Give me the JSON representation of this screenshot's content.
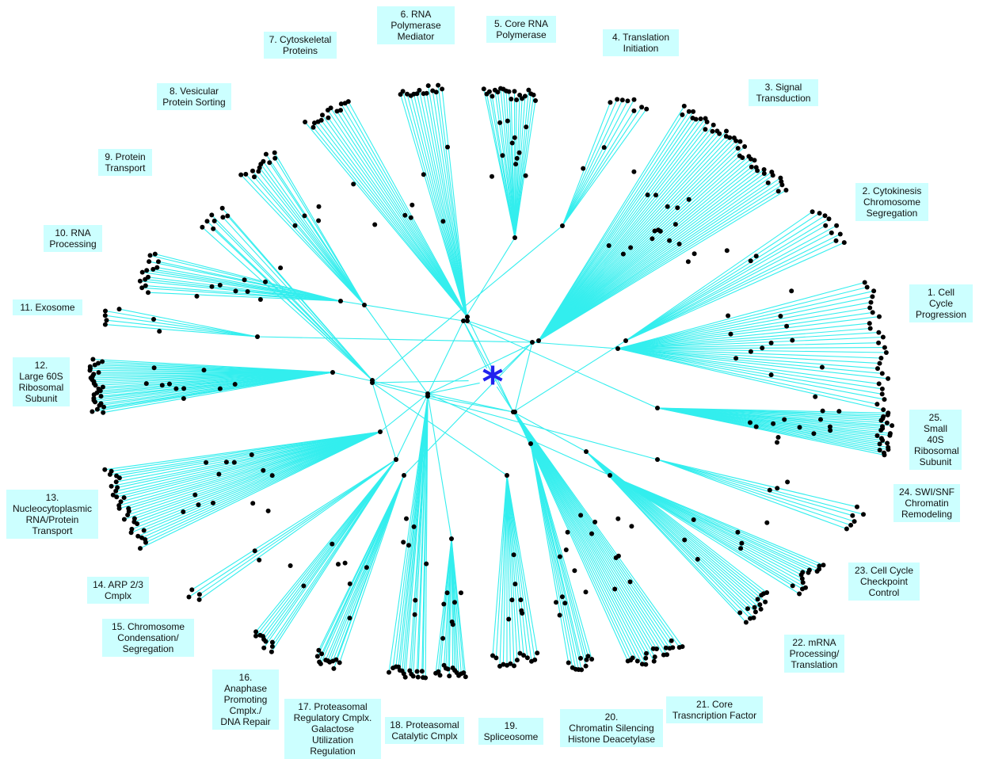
{
  "figure": {
    "center_marker": "*",
    "colors": {
      "edge": "#33eeee",
      "node": "#000000",
      "center": "#2222ee",
      "label_bg": "#ccffff"
    }
  },
  "clusters": [
    {
      "id": 1,
      "label": "1. Cell\nCycle\nProgression"
    },
    {
      "id": 2,
      "label": "2. Cytokinesis\nChromosome\nSegregation"
    },
    {
      "id": 3,
      "label": "3. Signal\nTransduction"
    },
    {
      "id": 4,
      "label": "4. Translation\nInitiation"
    },
    {
      "id": 5,
      "label": "5. Core RNA\nPolymerase"
    },
    {
      "id": 6,
      "label": "6. RNA\nPolymerase\nMediator"
    },
    {
      "id": 7,
      "label": "7. Cytoskeletal\nProteins"
    },
    {
      "id": 8,
      "label": "8. Vesicular\nProtein Sorting"
    },
    {
      "id": 9,
      "label": "9. Protein\nTransport"
    },
    {
      "id": 10,
      "label": "10. RNA\nProcessing"
    },
    {
      "id": 11,
      "label": "11. Exosome"
    },
    {
      "id": 12,
      "label": "12.\nLarge 60S\nRibosomal\nSubunit"
    },
    {
      "id": 13,
      "label": "13.\nNucleocytoplasmic\nRNA/Protein\nTransport"
    },
    {
      "id": 14,
      "label": "14. ARP 2/3\nCmplx"
    },
    {
      "id": 15,
      "label": "15. Chromosome\nCondensation/\nSegregation"
    },
    {
      "id": 16,
      "label": "16. Anaphase\nPromoting\nCmplx./\nDNA Repair"
    },
    {
      "id": 17,
      "label": "17. Proteasomal\nRegulatory Cmplx.\nGalactose\nUtilization Regulation"
    },
    {
      "id": 18,
      "label": "18. Proteasomal\nCatalytic Cmplx"
    },
    {
      "id": 19,
      "label": "19.\nSpliceosome"
    },
    {
      "id": 20,
      "label": "20.\nChromatin Silencing\nHistone Deacetylase"
    },
    {
      "id": 21,
      "label": "21. Core\nTrasncription Factor"
    },
    {
      "id": 22,
      "label": "22. mRNA\nProcessing/\nTranslation"
    },
    {
      "id": 23,
      "label": "23. Cell Cycle\nCheckpoint\nControl"
    },
    {
      "id": 24,
      "label": "24. SWI/SNF\nChromatin\nRemodeling"
    },
    {
      "id": 25,
      "label": "25.\nSmall 40S\nRibosomal\nSubunit"
    }
  ]
}
